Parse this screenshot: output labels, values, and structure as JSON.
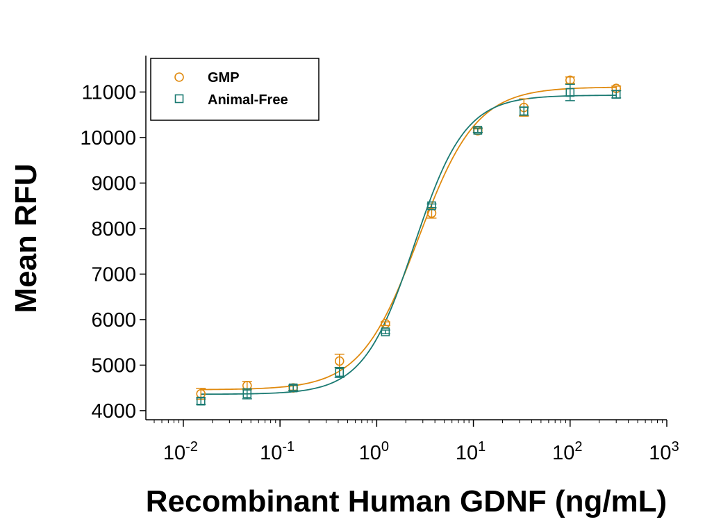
{
  "colors": {
    "gmp": "#E08A0F",
    "animal_free": "#1A7A72",
    "axis": "#000000"
  },
  "chart_data": {
    "type": "scatter",
    "title": "",
    "xlabel": "Recombinant Human GDNF (ng/mL)",
    "ylabel": "Mean RFU",
    "xscale": "log",
    "xlim": [
      0.0041,
      1000
    ],
    "ylim": [
      3800,
      11800
    ],
    "x_ticks": [
      {
        "value": 0.01,
        "base": "10",
        "exp": "-2"
      },
      {
        "value": 0.1,
        "base": "10",
        "exp": "-1"
      },
      {
        "value": 1,
        "base": "10",
        "exp": "0"
      },
      {
        "value": 10,
        "base": "10",
        "exp": "1"
      },
      {
        "value": 100,
        "base": "10",
        "exp": "2"
      },
      {
        "value": 1000,
        "base": "10",
        "exp": "3"
      }
    ],
    "y_ticks": [
      {
        "value": 4000,
        "label": "4000"
      },
      {
        "value": 5000,
        "label": "5000"
      },
      {
        "value": 6000,
        "label": "6000"
      },
      {
        "value": 7000,
        "label": "7000"
      },
      {
        "value": 8000,
        "label": "8000"
      },
      {
        "value": 9000,
        "label": "9000"
      },
      {
        "value": 10000,
        "label": "10000"
      },
      {
        "value": 11000,
        "label": "11000"
      }
    ],
    "grid": false,
    "legend_position": "top-left",
    "series": [
      {
        "name": "GMP",
        "marker": "circle",
        "color": "#E08A0F",
        "x": [
          0.0152,
          0.0457,
          0.137,
          0.412,
          1.23,
          3.7,
          11.1,
          33.3,
          100,
          300
        ],
        "y": [
          4370,
          4550,
          4500,
          5090,
          5910,
          8340,
          10150,
          10660,
          11260,
          11080
        ],
        "err": [
          120,
          90,
          50,
          150,
          40,
          110,
          40,
          190,
          70,
          50
        ],
        "fit": {
          "bottom": 4460,
          "top": 11110,
          "ec50": 2.7,
          "hill": 1.45
        }
      },
      {
        "name": "Animal-Free",
        "marker": "square",
        "color": "#1A7A72",
        "x": [
          0.0152,
          0.0457,
          0.137,
          0.412,
          1.23,
          3.7,
          11.1,
          33.3,
          100,
          300
        ],
        "y": [
          4210,
          4370,
          4500,
          4840,
          5730,
          8500,
          10160,
          10580,
          10990,
          10950
        ],
        "err": [
          70,
          110,
          60,
          110,
          40,
          40,
          50,
          90,
          180,
          80
        ],
        "fit": {
          "bottom": 4360,
          "top": 10930,
          "ec50": 2.45,
          "hill": 1.65
        }
      }
    ]
  }
}
